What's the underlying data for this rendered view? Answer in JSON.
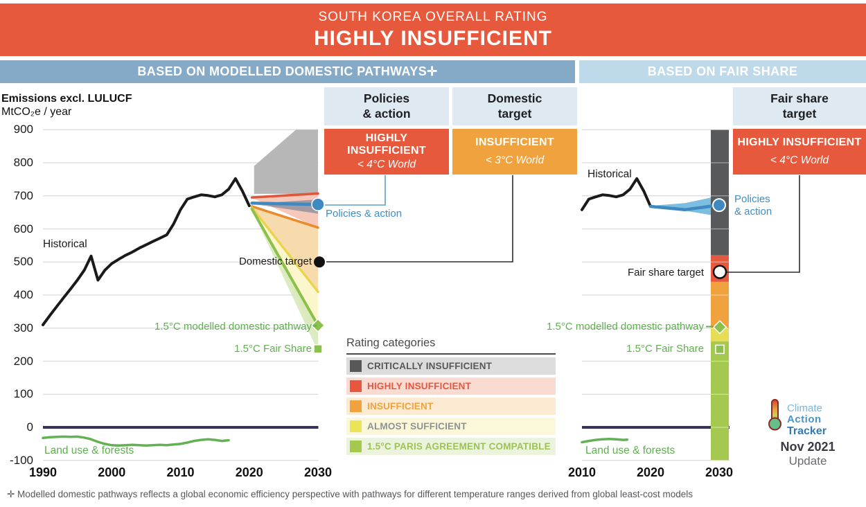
{
  "banner": {
    "subtitle": "SOUTH KOREA OVERALL RATING",
    "title": "HIGHLY INSUFFICIENT",
    "color": "#e7593c"
  },
  "section_headers": {
    "left": "BASED ON MODELLED DOMESTIC PATHWAYS✛",
    "right": "BASED ON FAIR SHARE",
    "left_color": "#85aac7",
    "right_color": "#bed9ea"
  },
  "axis_title": {
    "line1": "Emissions excl. LULUCF",
    "line2": "MtCO₂e / year"
  },
  "rating_boxes": [
    {
      "header1": "Policies",
      "header2": "& action",
      "line1": "HIGHLY",
      "line2": "INSUFFICIENT",
      "world": "< 4°C World",
      "color": "#e7593c"
    },
    {
      "header1": "Domestic",
      "header2": "target",
      "line1": "INSUFFICIENT",
      "line2": "",
      "world": "< 3°C World",
      "color": "#efa23e"
    },
    {
      "header1": "Fair share",
      "header2": "target",
      "line1": "HIGHLY INSUFFICIENT",
      "line2": "",
      "world": "< 4°C World",
      "color": "#e7593c"
    }
  ],
  "legend": {
    "title": "Rating categories",
    "items": [
      {
        "label": "CRITICALLY INSUFFICIENT",
        "swatch": "#57585a",
        "bg": "#dcdcdc",
        "text_color": "#57585a"
      },
      {
        "label": "HIGHLY INSUFFICIENT",
        "swatch": "#e8563f",
        "bg": "#fadbd2",
        "text_color": "#e8563f"
      },
      {
        "label": "INSUFFICIENT",
        "swatch": "#efa23e",
        "bg": "#fcead2",
        "text_color": "#efa23e"
      },
      {
        "label": "ALMOST SUFFICIENT",
        "swatch": "#ebe457",
        "bg": "#fbf8da",
        "text_color": "#909194"
      },
      {
        "label": "1.5°C PARIS AGREEMENT COMPATIBLE",
        "swatch": "#a4c94e",
        "bg": "#ecf3dc",
        "text_color": "#9dc25a"
      }
    ]
  },
  "logo": {
    "line1": "Climate",
    "line2": "Action",
    "line3": "Tracker",
    "date": "Nov 2021",
    "update": "Update"
  },
  "footnote": "✛  Modelled domestic pathways reflects a global economic efficiency perspective with pathways for different temperature ranges derived from global least-cost models",
  "chart_data": [
    {
      "type": "line",
      "title": "Emissions excl. LULUCF (MtCO₂e / year) — Based on modelled domestic pathways",
      "xlabel": "",
      "ylabel": "MtCO₂e / year",
      "x_range": [
        1990,
        2030
      ],
      "y_range": [
        -100,
        900
      ],
      "grid": true,
      "x_ticks": [
        1990,
        2000,
        2010,
        2020,
        2030
      ],
      "y_ticks": [
        900,
        800,
        700,
        600,
        500,
        400,
        300,
        200,
        100,
        0,
        -100
      ],
      "labels": {
        "historical": "Historical",
        "domestic_target": "Domestic target",
        "policies_action": "Policies & action",
        "pathway_15": "1.5°C modelled domestic pathway",
        "fair_share_15": "1.5°C Fair Share",
        "land_use": "Land use & forests"
      },
      "series": [
        {
          "name": "Historical",
          "color": "#1a1a1a",
          "width": 4,
          "x": [
            1990,
            1991,
            1992,
            1993,
            1994,
            1995,
            1996,
            1997,
            1998,
            1999,
            2000,
            2001,
            2002,
            2003,
            2004,
            2005,
            2006,
            2007,
            2008,
            2009,
            2010,
            2011,
            2012,
            2013,
            2014,
            2015,
            2016,
            2017,
            2018,
            2019,
            2020
          ],
          "y": [
            310,
            338,
            365,
            392,
            418,
            445,
            475,
            518,
            445,
            475,
            495,
            508,
            520,
            530,
            542,
            552,
            562,
            572,
            582,
            615,
            658,
            690,
            697,
            703,
            701,
            697,
            703,
            720,
            752,
            715,
            670
          ]
        },
        {
          "name": "Land use & forests",
          "color": "#62b152",
          "width": 3.5,
          "x": [
            1990,
            1991,
            1992,
            1993,
            1994,
            1995,
            1996,
            1997,
            1998,
            1999,
            2000,
            2001,
            2002,
            2003,
            2004,
            2005,
            2006,
            2007,
            2008,
            2009,
            2010,
            2011,
            2012,
            2013,
            2014,
            2015,
            2016,
            2017
          ],
          "y": [
            -32,
            -30,
            -29,
            -28,
            -29,
            -28,
            -31,
            -36,
            -44,
            -50,
            -54,
            -55,
            -54,
            -53,
            -54,
            -55,
            -54,
            -53,
            -54,
            -52,
            -50,
            -46,
            -41,
            -38,
            -36,
            -38,
            -41,
            -39
          ]
        },
        {
          "name": "4C upper bound",
          "color": "#e0563a",
          "width": 3.5,
          "x": [
            2020.4,
            2030
          ],
          "y": [
            695,
            707
          ]
        },
        {
          "name": "3C bound",
          "color": "#e98b2d",
          "width": 3.5,
          "x": [
            2020.4,
            2030
          ],
          "y": [
            668,
            604
          ]
        },
        {
          "name": "2C bound",
          "color": "#e8d44d",
          "width": 3.5,
          "x": [
            2020.4,
            2030
          ],
          "y": [
            664,
            410
          ]
        },
        {
          "name": "1.5C modelled domestic pathway",
          "color": "#8cc04c",
          "width": 4,
          "x": [
            2020.4,
            2030
          ],
          "y": [
            660,
            308
          ]
        },
        {
          "name": "Policies & action",
          "color": "#3d89c0",
          "width": 4.5,
          "x": [
            2020.4,
            2025,
            2030
          ],
          "y": [
            678,
            676,
            674
          ]
        }
      ],
      "bands": [
        {
          "name": "critically-insufficient-range",
          "color": "#b7b7b7",
          "opacity": 1,
          "points": [
            [
              2020.7,
              790
            ],
            [
              2026.8,
              900
            ],
            [
              2030,
              900
            ],
            [
              2030,
              706
            ],
            [
              2020.7,
              706
            ]
          ]
        },
        {
          "name": "highly-insufficient-range",
          "color": "#f6c8b9",
          "opacity": 1,
          "points": [
            [
              2020.3,
              695
            ],
            [
              2030,
              706
            ],
            [
              2030,
              603
            ]
          ]
        },
        {
          "name": "insufficient-range",
          "color": "#f8dbad",
          "opacity": 1,
          "points": [
            [
              2020.3,
              672
            ],
            [
              2030,
              603
            ],
            [
              2030,
              411
            ]
          ]
        },
        {
          "name": "almost-sufficient-range",
          "color": "#fbf6cb",
          "opacity": 1,
          "points": [
            [
              2020.3,
              668
            ],
            [
              2030,
              411
            ],
            [
              2030,
              263
            ]
          ]
        },
        {
          "name": "paris-compatible-range",
          "color": "#d4e6b5",
          "opacity": 0.8,
          "points": [
            [
              2020.3,
              662
            ],
            [
              2030,
              318
            ],
            [
              2030,
              230
            ]
          ]
        },
        {
          "name": "policies-action-range",
          "color": "#5c7390",
          "opacity": 0.55,
          "points": [
            [
              2020.3,
              676
            ],
            [
              2030,
              689
            ],
            [
              2030,
              646
            ]
          ]
        }
      ],
      "markers": [
        {
          "name": "policies-action-2030",
          "shape": "circle",
          "x": 2030,
          "y": 674,
          "r": 9,
          "fill": "#3d89c0",
          "stroke": "#ffffff",
          "stroke_width": 1.5
        },
        {
          "name": "domestic-target-2030",
          "shape": "circle",
          "x": 2030,
          "dx": 2,
          "y": 500,
          "r": 8,
          "fill": "#111111",
          "stroke": "none",
          "stroke_width": 0
        },
        {
          "name": "pathway-15-2030",
          "shape": "diamond",
          "x": 2030,
          "y": 308,
          "fill": "#8cc04c",
          "stroke": "#ffffff"
        },
        {
          "name": "fair-share-15-2030",
          "shape": "square",
          "x": 2030,
          "y": 237,
          "fill": "#8cc04c",
          "stroke": "#ffffff"
        }
      ]
    },
    {
      "type": "line",
      "title": "Emissions excl. LULUCF (MtCO₂e / year) — Based on fair share",
      "xlabel": "",
      "ylabel": "MtCO₂e / year",
      "x_range": [
        2010,
        2031.3
      ],
      "y_range": [
        -100,
        900
      ],
      "grid": true,
      "x_ticks": [
        2010,
        2020,
        2030
      ],
      "y_ticks": [
        900,
        800,
        700,
        600,
        500,
        400,
        300,
        200,
        100,
        0,
        -100
      ],
      "labels": {
        "historical": "Historical",
        "fair_share_target": "Fair share target",
        "policies_line1": "Policies",
        "policies_line2": "& action",
        "pathway_15": "1.5°C modelled domestic pathway",
        "fair_share_15": "1.5°C Fair Share",
        "land_use": "Land use & forests"
      },
      "series": [
        {
          "name": "Historical",
          "color": "#1a1a1a",
          "width": 4,
          "x": [
            2010,
            2011,
            2012,
            2013,
            2014,
            2015,
            2016,
            2017,
            2018,
            2019,
            2020
          ],
          "y": [
            658,
            690,
            697,
            703,
            701,
            697,
            703,
            720,
            752,
            715,
            668
          ]
        },
        {
          "name": "Land use & forests",
          "color": "#62b152",
          "width": 3.5,
          "x": [
            2010,
            2011,
            2012,
            2013,
            2014,
            2015,
            2016,
            2016.6
          ],
          "y": [
            -45,
            -41,
            -38,
            -36,
            -35,
            -36,
            -38,
            -37
          ]
        },
        {
          "name": "Policies & action",
          "color": "#3d89c0",
          "width": 4.5,
          "x": [
            2020,
            2025,
            2030
          ],
          "y": [
            668,
            658,
            672
          ]
        }
      ],
      "bands": [
        {
          "name": "policies-action-range",
          "color": "#4fa8d5",
          "opacity": 0.75,
          "points": [
            [
              2020,
              670
            ],
            [
              2025,
              655
            ],
            [
              2030,
              638
            ],
            [
              2030,
              700
            ],
            [
              2025,
              678
            ]
          ]
        }
      ],
      "rating_bar": {
        "segments": [
          {
            "label": "CRITICALLY INSUFFICIENT",
            "from": 520,
            "to": 900,
            "color": "#58595b"
          },
          {
            "label": "HIGHLY INSUFFICIENT",
            "from": 440,
            "to": 520,
            "color": "#e7593c"
          },
          {
            "label": "INSUFFICIENT",
            "from": 300,
            "to": 440,
            "color": "#efa23e"
          },
          {
            "label": "ALMOST SUFFICIENT",
            "from": 260,
            "to": 300,
            "color": "#e7dc56"
          },
          {
            "label": "1.5°C PARIS AGREEMENT COMPATIBLE",
            "from": -100,
            "to": 260,
            "color": "#a5c94f"
          }
        ]
      },
      "markers": [
        {
          "name": "policies-action-2030",
          "shape": "circle",
          "x": 2030,
          "y": 672,
          "r": 9,
          "fill": "#3d89c0",
          "stroke": "#ffffff",
          "stroke_width": 2
        },
        {
          "name": "fair-share-target-2030",
          "shape": "circle",
          "x": 2030,
          "dx": 1,
          "y": 470,
          "r": 9,
          "fill": "#ffffff",
          "stroke": "#111111",
          "stroke_width": 2.5
        },
        {
          "name": "pathway-15-2030",
          "shape": "diamond",
          "x": 2030,
          "dx": 1,
          "y": 303,
          "fill": "#8cc04c",
          "stroke": "#ffffff"
        },
        {
          "name": "fair-share-15-2030",
          "shape": "square",
          "x": 2030,
          "dx": 1,
          "y": 236,
          "fill": "#8cc04c",
          "stroke": "#ffffff"
        }
      ]
    }
  ]
}
